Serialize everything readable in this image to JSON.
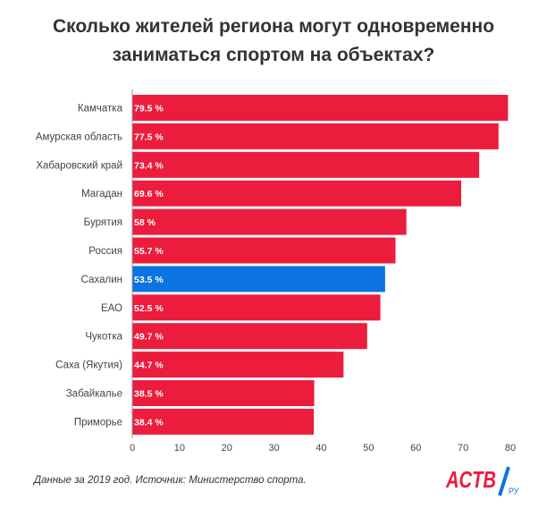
{
  "title_lines": [
    "Сколько жителей региона могут одновременно",
    "заниматься спортом на объектах?"
  ],
  "source": "Данные за 2019 год. Источник: Министерство спорта.",
  "logo": {
    "main_text": "ACTB",
    "suffix": "РУ",
    "color": "#ec1c3d"
  },
  "colors": {
    "bar": "#ec1c3d",
    "highlight": "#0b74e0",
    "axis": "#999999",
    "label": "#444444"
  },
  "chart_data": {
    "type": "bar",
    "orientation": "horizontal",
    "categories": [
      "Камчатка",
      "Амурская область",
      "Хабаровский край",
      "Магадан",
      "Бурятия",
      "Россия",
      "Сахалин",
      "ЕАО",
      "Чукотка",
      "Саха (Якутия)",
      "Забайкалье",
      "Приморье"
    ],
    "values": [
      79.5,
      77.5,
      73.4,
      69.6,
      58,
      55.7,
      53.5,
      52.5,
      49.7,
      44.7,
      38.5,
      38.4
    ],
    "value_labels": [
      "79.5 %",
      "77.5 %",
      "73.4 %",
      "69.6 %",
      "58 %",
      "55.7 %",
      "53.5 %",
      "52.5 %",
      "49.7 %",
      "44.7 %",
      "38.5 %",
      "38.4 %"
    ],
    "highlight": "Сахалин",
    "xlim": [
      0,
      80
    ],
    "xticks": [
      0,
      10,
      20,
      30,
      40,
      50,
      60,
      70,
      80
    ],
    "grid": false
  }
}
